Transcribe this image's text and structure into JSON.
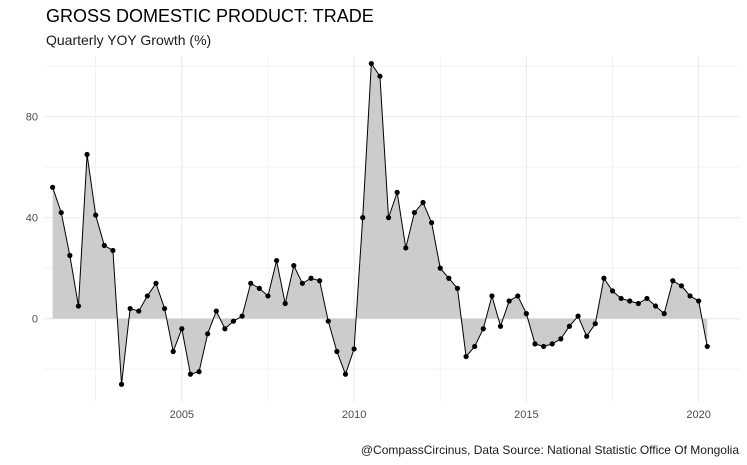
{
  "title": "GROSS DOMESTIC PRODUCT: TRADE",
  "subtitle": "Quarterly YOY Growth (%)",
  "caption": "@CompassCircinus, Data Source: National Statistic Office Of Mongolia",
  "chart_data": {
    "type": "area",
    "title": "GROSS DOMESTIC PRODUCT: TRADE",
    "subtitle": "Quarterly YOY Growth (%)",
    "xlim": [
      2001.0,
      2021.2
    ],
    "ylim": [
      -33,
      104
    ],
    "x_ticks": [
      2005,
      2010,
      2015,
      2020
    ],
    "y_ticks": [
      0,
      40,
      80
    ],
    "grid": true,
    "colors": {
      "area": "#cccccc",
      "line": "#000000",
      "points": "#000000",
      "grid": "#ebebeb"
    },
    "x": [
      2001.25,
      2001.5,
      2001.75,
      2002.0,
      2002.25,
      2002.5,
      2002.75,
      2003.0,
      2003.25,
      2003.5,
      2003.75,
      2004.0,
      2004.25,
      2004.5,
      2004.75,
      2005.0,
      2005.25,
      2005.5,
      2005.75,
      2006.0,
      2006.25,
      2006.5,
      2006.75,
      2007.0,
      2007.25,
      2007.5,
      2007.75,
      2008.0,
      2008.25,
      2008.5,
      2008.75,
      2009.0,
      2009.25,
      2009.5,
      2009.75,
      2010.0,
      2010.25,
      2010.5,
      2010.75,
      2011.0,
      2011.25,
      2011.5,
      2011.75,
      2012.0,
      2012.25,
      2012.5,
      2012.75,
      2013.0,
      2013.25,
      2013.5,
      2013.75,
      2014.0,
      2014.25,
      2014.5,
      2014.75,
      2015.0,
      2015.25,
      2015.5,
      2015.75,
      2016.0,
      2016.25,
      2016.5,
      2016.75,
      2017.0,
      2017.25,
      2017.5,
      2017.75,
      2018.0,
      2018.25,
      2018.5,
      2018.75,
      2019.0,
      2019.25,
      2019.5,
      2019.75,
      2020.0,
      2020.25
    ],
    "y": [
      52,
      42,
      25,
      5,
      65,
      41,
      29,
      27,
      -26,
      4,
      3,
      9,
      14,
      4,
      -13,
      -4,
      -22,
      -21,
      -6,
      3,
      -4,
      -1,
      1,
      14,
      12,
      9,
      23,
      6,
      21,
      14,
      16,
      15,
      -1,
      -13,
      -22,
      -12,
      40,
      101,
      96,
      40,
      50,
      28,
      42,
      46,
      38,
      20,
      16,
      12,
      -15,
      -11,
      -4,
      9,
      -3,
      7,
      9,
      2,
      -10,
      -11,
      -10,
      -8,
      -3,
      1,
      -7,
      -2,
      16,
      11,
      8,
      7,
      6,
      8,
      5,
      2,
      15,
      13,
      9,
      7,
      -11
    ]
  }
}
